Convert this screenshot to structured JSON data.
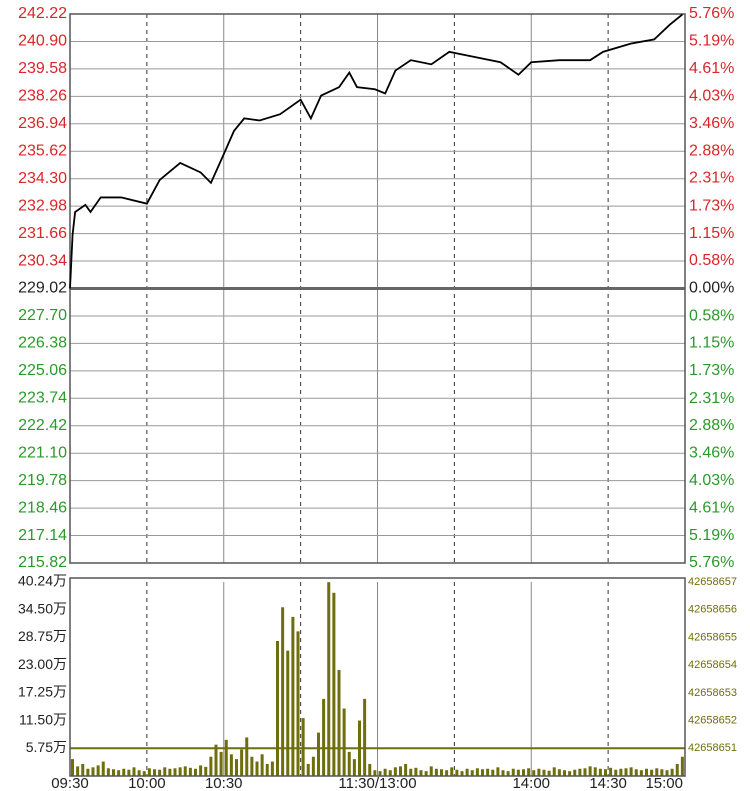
{
  "chart_data": [
    {
      "type": "line",
      "x": [
        0,
        1,
        2,
        6,
        8,
        12,
        20,
        30,
        35,
        43,
        51,
        55,
        59,
        64,
        68,
        74,
        82,
        90,
        94,
        98,
        105,
        109,
        112,
        119,
        123,
        127,
        133,
        141,
        148,
        156,
        168,
        175,
        180,
        191,
        203,
        208,
        219,
        228,
        234,
        239
      ],
      "values": [
        229.02,
        231.6,
        232.7,
        233.04,
        232.7,
        233.4,
        233.4,
        233.1,
        234.24,
        235.06,
        234.6,
        234.1,
        235.2,
        236.6,
        237.2,
        237.1,
        237.4,
        238.1,
        237.2,
        238.3,
        238.7,
        239.4,
        238.7,
        238.6,
        238.4,
        239.5,
        240.0,
        239.8,
        240.4,
        240.2,
        239.9,
        239.3,
        239.9,
        240.0,
        240.0,
        240.4,
        240.8,
        241.0,
        241.7,
        242.2
      ],
      "color": "#000000",
      "xlim": [
        0,
        240
      ],
      "xticks": [
        {
          "value": 0,
          "label": "09:30"
        },
        {
          "value": 30,
          "label": "10:00"
        },
        {
          "value": 60,
          "label": "10:30"
        },
        {
          "value": 120,
          "label": "11:30/13:00"
        },
        {
          "value": 180,
          "label": "14:00"
        },
        {
          "value": 210,
          "label": "14:30"
        },
        {
          "value": 240,
          "label": "15:00"
        }
      ],
      "ylim": [
        215.82,
        242.22
      ],
      "yticks": [
        {
          "value": 242.22,
          "label": "242.22"
        },
        {
          "value": 240.9,
          "label": "240.90"
        },
        {
          "value": 239.58,
          "label": "239.58"
        },
        {
          "value": 238.26,
          "label": "238.26"
        },
        {
          "value": 236.94,
          "label": "236.94"
        },
        {
          "value": 235.62,
          "label": "235.62"
        },
        {
          "value": 234.3,
          "label": "234.30"
        },
        {
          "value": 232.98,
          "label": "232.98"
        },
        {
          "value": 231.66,
          "label": "231.66"
        },
        {
          "value": 230.34,
          "label": "230.34"
        },
        {
          "value": 229.02,
          "label": "229.02"
        },
        {
          "value": 227.7,
          "label": "227.70"
        },
        {
          "value": 226.38,
          "label": "226.38"
        },
        {
          "value": 225.06,
          "label": "225.06"
        },
        {
          "value": 223.74,
          "label": "223.74"
        },
        {
          "value": 222.42,
          "label": "222.42"
        },
        {
          "value": 221.1,
          "label": "221.10"
        },
        {
          "value": 219.78,
          "label": "219.78"
        },
        {
          "value": 218.46,
          "label": "218.46"
        },
        {
          "value": 217.14,
          "label": "217.14"
        },
        {
          "value": 215.82,
          "label": "215.82"
        }
      ],
      "y2lim": [
        -5.76,
        5.76
      ],
      "y2ticks": [
        {
          "value": 5.76,
          "label": "5.76%"
        },
        {
          "value": 5.19,
          "label": "5.19%"
        },
        {
          "value": 4.61,
          "label": "4.61%"
        },
        {
          "value": 4.03,
          "label": "4.03%"
        },
        {
          "value": 3.46,
          "label": "3.46%"
        },
        {
          "value": 2.88,
          "label": "2.88%"
        },
        {
          "value": 2.31,
          "label": "2.31%"
        },
        {
          "value": 1.73,
          "label": "1.73%"
        },
        {
          "value": 1.15,
          "label": "1.15%"
        },
        {
          "value": 0.58,
          "label": "0.58%"
        },
        {
          "value": 0,
          "label": "0.00%"
        },
        {
          "value": -0.58,
          "label": "0.58%"
        },
        {
          "value": -1.15,
          "label": "1.15%"
        },
        {
          "value": -1.73,
          "label": "1.73%"
        },
        {
          "value": -2.31,
          "label": "2.31%"
        },
        {
          "value": -2.88,
          "label": "2.88%"
        },
        {
          "value": -3.46,
          "label": "3.46%"
        },
        {
          "value": -4.03,
          "label": "4.03%"
        },
        {
          "value": -4.61,
          "label": "4.61%"
        },
        {
          "value": -5.19,
          "label": "5.19%"
        },
        {
          "value": -5.76,
          "label": "5.76%"
        }
      ],
      "up_color": "#d9262a",
      "down_color": "#2a9a2a",
      "grid": true
    },
    {
      "type": "bar",
      "x": [
        0,
        2,
        4,
        6,
        8,
        10,
        12,
        14,
        16,
        18,
        20,
        22,
        24,
        26,
        28,
        30,
        32,
        34,
        36,
        38,
        40,
        42,
        44,
        46,
        48,
        50,
        52,
        54,
        56,
        58,
        60,
        62,
        64,
        66,
        68,
        70,
        72,
        74,
        76,
        78,
        80,
        82,
        84,
        86,
        88,
        90,
        92,
        94,
        96,
        98,
        100,
        102,
        104,
        106,
        108,
        110,
        112,
        114,
        116,
        118,
        120,
        122,
        124,
        126,
        128,
        130,
        132,
        134,
        136,
        138,
        140,
        142,
        144,
        146,
        148,
        150,
        152,
        154,
        156,
        158,
        160,
        162,
        164,
        166,
        168,
        170,
        172,
        174,
        176,
        178,
        180,
        182,
        184,
        186,
        188,
        190,
        192,
        194,
        196,
        198,
        200,
        202,
        204,
        206,
        208,
        210,
        212,
        214,
        216,
        218,
        220,
        222,
        224,
        226,
        228,
        230,
        232,
        234,
        236,
        238
      ],
      "values": [
        3.5,
        2.0,
        2.5,
        1.5,
        1.8,
        2.2,
        3.0,
        1.6,
        1.4,
        1.2,
        1.5,
        1.3,
        1.8,
        1.2,
        1.0,
        1.6,
        1.4,
        1.3,
        1.8,
        1.5,
        1.6,
        1.8,
        2.0,
        1.7,
        1.5,
        2.2,
        1.9,
        4.0,
        6.5,
        5.0,
        7.5,
        4.5,
        3.5,
        5.5,
        8.0,
        4.0,
        3.0,
        4.5,
        2.5,
        3.0,
        28,
        35,
        26,
        33,
        30,
        12,
        2.5,
        4,
        9,
        16,
        40.2,
        38,
        22,
        14,
        5,
        3.5,
        11.5,
        16,
        2.5,
        1.2,
        1.0,
        1.5,
        1.2,
        1.8,
        2.0,
        2.5,
        1.5,
        1.7,
        1.2,
        1.0,
        2.0,
        1.5,
        1.4,
        1.2,
        1.8,
        1.3,
        1.0,
        1.5,
        1.2,
        1.6,
        1.4,
        1.5,
        1.3,
        1.8,
        1.2,
        1.0,
        1.5,
        1.3,
        1.4,
        1.6,
        1.2,
        1.5,
        1.3,
        1.1,
        1.8,
        1.4,
        1.2,
        1.0,
        1.3,
        1.5,
        1.6,
        2.0,
        1.8,
        1.5,
        1.4,
        1.7,
        1.3,
        1.5,
        1.6,
        1.8,
        1.4,
        1.2,
        1.5,
        1.3,
        1.6,
        1.4,
        1.2,
        1.5,
        2.5,
        4.0
      ],
      "color": "#6e6e0c",
      "xlim": [
        0,
        240
      ],
      "ylim": [
        0,
        40.24
      ],
      "yticks": [
        {
          "value": 40.24,
          "label": "40.24万"
        },
        {
          "value": 34.5,
          "label": "34.50万"
        },
        {
          "value": 28.75,
          "label": "28.75万"
        },
        {
          "value": 23,
          "label": "23.00万"
        },
        {
          "value": 17.25,
          "label": "17.25万"
        },
        {
          "value": 11.5,
          "label": "11.50万"
        },
        {
          "value": 5.75,
          "label": "5.75万"
        }
      ],
      "y2lim": [
        42658650,
        42658657
      ],
      "y2ticks": [
        42658657,
        42658656,
        42658655,
        42658654,
        42658653,
        42658652,
        42658651
      ]
    }
  ]
}
